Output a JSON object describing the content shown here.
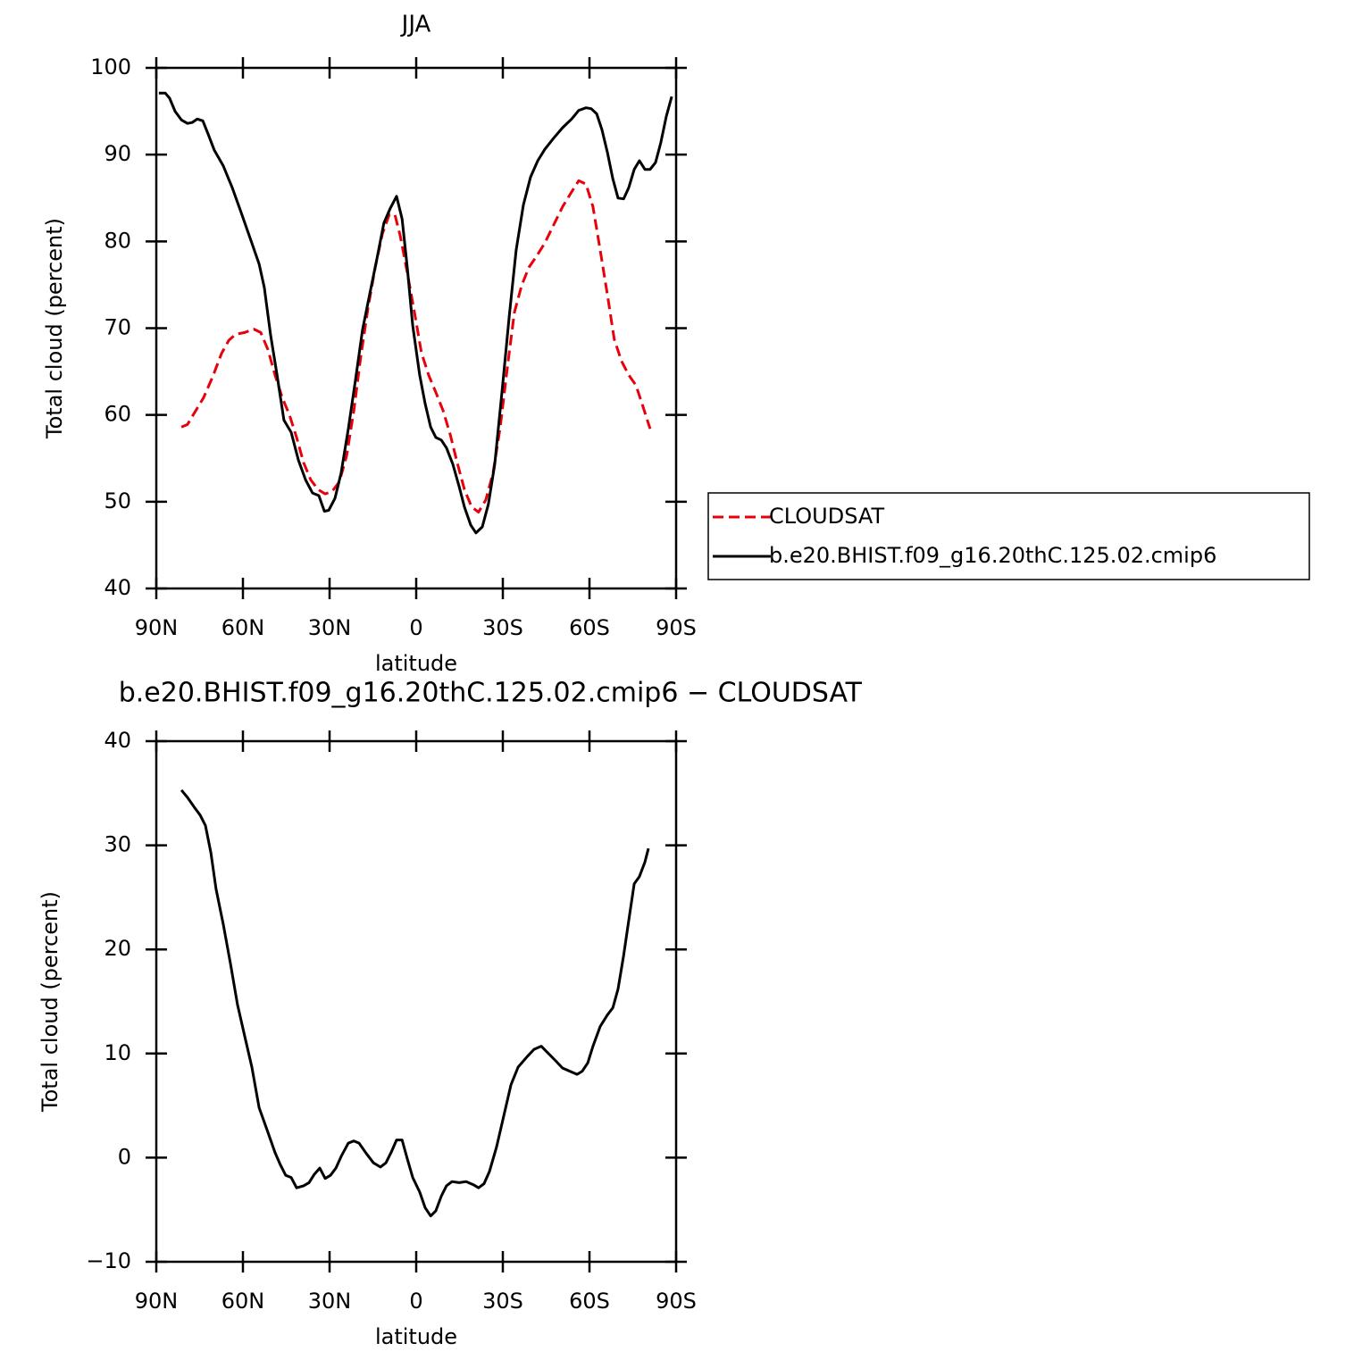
{
  "chart_data": [
    {
      "type": "line",
      "title": "JJA",
      "xlabel": "latitude",
      "ylabel": "Total cloud (percent)",
      "xlim": [
        90,
        -90
      ],
      "xticks": [
        {
          "value": 90,
          "label": "90N"
        },
        {
          "value": 60,
          "label": "60N"
        },
        {
          "value": 30,
          "label": "30N"
        },
        0,
        {
          "value": -30,
          "label": "30S"
        },
        {
          "value": -60,
          "label": "60S"
        },
        {
          "value": -90,
          "label": "90S"
        }
      ],
      "ylim": [
        40,
        100
      ],
      "yticks": [
        40,
        50,
        60,
        70,
        80,
        90,
        100
      ],
      "legend": "outside-right",
      "series": [
        {
          "name": "CLOUDSAT",
          "color": "#e8000b",
          "linestyle": "dashed",
          "x": [
            81.3,
            79.2,
            76.7,
            73.6,
            70.5,
            67.4,
            64.9,
            62.5,
            59.4,
            56.3,
            53.8,
            51.3,
            48.9,
            46.4,
            43.9,
            41.4,
            39.0,
            36.5,
            34.0,
            31.5,
            29.1,
            26.6,
            24.1,
            21.6,
            19.2,
            16.7,
            14.2,
            11.7,
            9.3,
            7.4,
            5.5,
            3.1,
            0.6,
            -1.8,
            -4.3,
            -6.8,
            -9.3,
            -11.8,
            -14.2,
            -16.7,
            -19.2,
            -21.6,
            -24.1,
            -26.6,
            -29.1,
            -31.6,
            -34.0,
            -36.5,
            -39.0,
            -41.5,
            -44.5,
            -47.6,
            -50.7,
            -53.8,
            -56.3,
            -58.8,
            -61.2,
            -63.7,
            -66.2,
            -68.6,
            -71.1,
            -73.6,
            -76.1,
            -78.5,
            -81.0
          ],
          "values": [
            58.6,
            58.9,
            60.3,
            62.0,
            64.4,
            67.1,
            68.6,
            69.3,
            69.5,
            69.9,
            69.5,
            67.5,
            64.6,
            62.0,
            60.0,
            57.4,
            54.5,
            52.5,
            51.4,
            50.9,
            51.2,
            52.3,
            55.3,
            60.5,
            66.7,
            72.3,
            77.0,
            80.9,
            83.1,
            83.1,
            80.6,
            76.4,
            71.8,
            67.2,
            64.6,
            62.6,
            60.5,
            57.7,
            54.5,
            51.4,
            49.4,
            48.8,
            50.2,
            53.3,
            58.6,
            65.6,
            71.8,
            74.9,
            77.0,
            78.2,
            79.8,
            81.9,
            84.0,
            85.7,
            87.0,
            86.6,
            84.0,
            79.0,
            73.9,
            68.7,
            66.2,
            64.6,
            63.4,
            61.0,
            58.4
          ]
        },
        {
          "name": "b.e20.BHIST.f09_g16.20thC.125.02.cmip6",
          "color": "#000000",
          "linestyle": "solid",
          "x": [
            89.1,
            86.9,
            85.4,
            83.5,
            81.3,
            79.2,
            77.6,
            75.8,
            73.9,
            72.1,
            69.9,
            66.8,
            63.7,
            60.6,
            56.9,
            54.4,
            52.6,
            50.4,
            48.2,
            45.8,
            43.3,
            40.8,
            38.3,
            35.9,
            33.7,
            31.8,
            30.3,
            28.1,
            26.0,
            23.5,
            21.0,
            18.6,
            16.1,
            13.6,
            11.2,
            9.0,
            6.8,
            4.9,
            3.1,
            1.2,
            -1.2,
            -3.1,
            -5.0,
            -6.8,
            -8.7,
            -10.5,
            -12.7,
            -14.9,
            -16.7,
            -18.9,
            -20.7,
            -22.9,
            -25.0,
            -27.2,
            -29.7,
            -32.2,
            -34.6,
            -37.1,
            -39.6,
            -42.1,
            -44.5,
            -47.6,
            -50.7,
            -53.8,
            -56.3,
            -58.8,
            -60.6,
            -62.5,
            -64.3,
            -66.2,
            -68.1,
            -69.9,
            -71.8,
            -73.6,
            -75.5,
            -77.3,
            -79.2,
            -81.0,
            -82.9,
            -84.7,
            -86.6,
            -88.5
          ],
          "values": [
            97.1,
            97.1,
            96.5,
            95.0,
            94.0,
            93.6,
            93.7,
            94.1,
            93.9,
            92.4,
            90.5,
            88.7,
            86.2,
            83.3,
            79.8,
            77.4,
            74.7,
            69.2,
            64.6,
            59.4,
            58.0,
            54.8,
            52.5,
            51.0,
            50.7,
            48.9,
            49.0,
            50.4,
            53.3,
            58.4,
            64.1,
            69.8,
            73.9,
            78.0,
            82.1,
            83.8,
            85.2,
            82.6,
            77.0,
            70.3,
            64.6,
            61.3,
            58.6,
            57.4,
            57.1,
            56.2,
            54.3,
            51.7,
            49.4,
            47.3,
            46.4,
            47.1,
            49.7,
            54.3,
            62.6,
            71.3,
            79.0,
            84.2,
            87.4,
            89.3,
            90.6,
            91.9,
            93.1,
            94.1,
            95.1,
            95.4,
            95.3,
            94.7,
            92.9,
            90.3,
            87.2,
            85.0,
            84.9,
            86.2,
            88.3,
            89.3,
            88.3,
            88.3,
            89.1,
            91.4,
            94.4,
            96.7
          ]
        }
      ]
    },
    {
      "type": "line",
      "title": "b.e20.BHIST.f09_g16.20thC.125.02.cmip6 − CLOUDSAT",
      "xlabel": "latitude",
      "ylabel": "Total cloud (percent)",
      "xlim": [
        90,
        -90
      ],
      "xticks": [
        {
          "value": 90,
          "label": "90N"
        },
        {
          "value": 60,
          "label": "60N"
        },
        {
          "value": 30,
          "label": "30N"
        },
        0,
        {
          "value": -30,
          "label": "30S"
        },
        {
          "value": -60,
          "label": "60S"
        },
        {
          "value": -90,
          "label": "90S"
        }
      ],
      "ylim": [
        -10,
        40
      ],
      "yticks": [
        {
          "value": -10,
          "label": "−10"
        },
        0,
        10,
        20,
        30,
        40
      ],
      "series": [
        {
          "color": "#000000",
          "linestyle": "solid",
          "x": [
            81.3,
            79.2,
            76.7,
            74.8,
            73.0,
            71.1,
            69.3,
            66.8,
            64.3,
            61.9,
            59.4,
            56.9,
            54.4,
            51.3,
            48.9,
            47.0,
            45.2,
            43.3,
            41.4,
            39.0,
            37.1,
            35.3,
            33.4,
            31.5,
            29.7,
            27.8,
            26.0,
            23.5,
            21.6,
            19.8,
            17.3,
            14.8,
            12.4,
            10.5,
            8.7,
            6.8,
            4.9,
            3.1,
            1.2,
            -1.2,
            -3.1,
            -5.0,
            -6.8,
            -8.7,
            -10.5,
            -12.4,
            -14.9,
            -17.3,
            -19.8,
            -21.6,
            -23.5,
            -25.4,
            -27.8,
            -30.3,
            -32.8,
            -35.3,
            -38.4,
            -40.8,
            -43.3,
            -45.8,
            -48.3,
            -50.7,
            -53.2,
            -55.7,
            -57.5,
            -59.4,
            -61.2,
            -63.7,
            -66.2,
            -68.1,
            -69.9,
            -71.8,
            -73.6,
            -75.5,
            -77.3,
            -79.2,
            -80.4
          ],
          "values": [
            35.3,
            34.6,
            33.6,
            32.9,
            31.9,
            29.3,
            25.8,
            22.4,
            18.6,
            14.7,
            11.7,
            8.7,
            4.8,
            2.4,
            0.5,
            -0.7,
            -1.7,
            -1.9,
            -2.9,
            -2.7,
            -2.4,
            -1.6,
            -1.0,
            -2.0,
            -1.7,
            -1.0,
            0.1,
            1.4,
            1.6,
            1.4,
            0.4,
            -0.5,
            -0.9,
            -0.5,
            0.5,
            1.7,
            1.7,
            -0.1,
            -1.9,
            -3.3,
            -4.8,
            -5.6,
            -5.1,
            -3.7,
            -2.7,
            -2.3,
            -2.4,
            -2.3,
            -2.6,
            -2.9,
            -2.5,
            -1.3,
            1.0,
            4.0,
            7.0,
            8.7,
            9.7,
            10.4,
            10.7,
            10.0,
            9.3,
            8.6,
            8.3,
            8.0,
            8.3,
            9.1,
            10.7,
            12.6,
            13.7,
            14.4,
            16.2,
            19.4,
            22.8,
            26.3,
            27.0,
            28.4,
            29.7
          ]
        }
      ]
    }
  ]
}
